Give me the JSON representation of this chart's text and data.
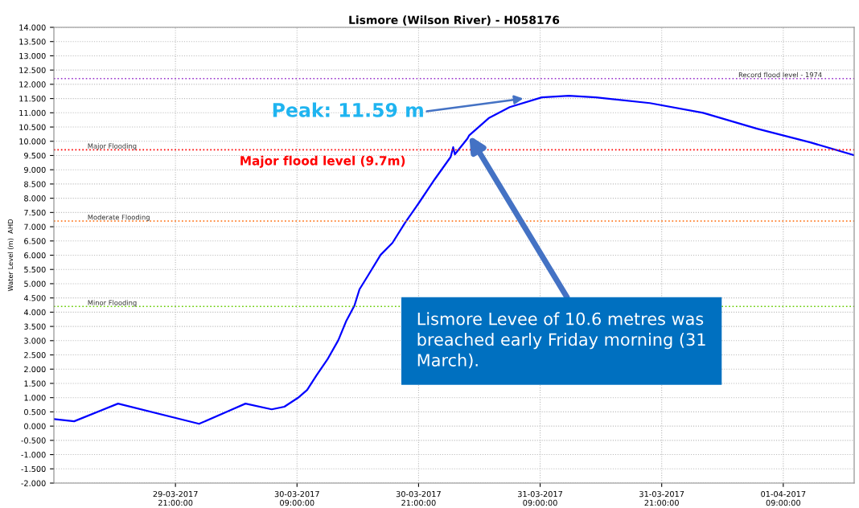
{
  "chart_data": {
    "type": "line",
    "title": "Lismore (Wilson River) - H058176",
    "ylabel": "Water Level (m)  AHD",
    "series": [
      {
        "color": "#0000ff",
        "x": [
          "2017-03-29T09:00",
          "2017-03-29T11:00",
          "2017-03-29T15:20",
          "2017-03-29T23:20",
          "2017-03-30T03:55",
          "2017-03-30T06:30",
          "2017-03-30T07:45",
          "2017-03-30T09:05",
          "2017-03-30T10:00",
          "2017-03-30T10:55",
          "2017-03-30T12:00",
          "2017-03-30T13:05",
          "2017-03-30T13:50",
          "2017-03-30T14:40",
          "2017-03-30T15:10",
          "2017-03-30T16:00",
          "2017-03-30T17:15",
          "2017-03-30T18:25",
          "2017-03-30T19:40",
          "2017-03-30T21:00",
          "2017-03-30T22:35",
          "2017-03-31T00:10",
          "2017-03-31T00:25",
          "2017-03-31T00:35",
          "2017-03-31T01:50",
          "2017-03-31T02:00",
          "2017-03-31T03:55",
          "2017-03-31T06:00",
          "2017-03-31T09:10",
          "2017-03-31T11:50",
          "2017-03-31T14:30",
          "2017-03-31T19:50",
          "2017-04-01T01:05",
          "2017-04-01T06:25",
          "2017-04-01T11:40",
          "2017-04-01T16:00"
        ],
        "values": [
          0.25,
          0.17,
          0.79,
          0.08,
          0.79,
          0.59,
          0.68,
          0.99,
          1.27,
          1.78,
          2.34,
          3.02,
          3.67,
          4.23,
          4.8,
          5.28,
          6.01,
          6.43,
          7.14,
          7.82,
          8.66,
          9.45,
          9.79,
          9.54,
          10.1,
          10.21,
          10.81,
          11.2,
          11.54,
          11.6,
          11.54,
          11.34,
          11.0,
          10.44,
          9.96,
          9.51
        ]
      }
    ],
    "xlim": [
      "2017-03-29T09:00",
      "2017-04-01T16:00"
    ],
    "xticks": [
      {
        "value": "2017-03-29T21:00",
        "label": "29-03-2017\n21:00:00"
      },
      {
        "value": "2017-03-30T09:00",
        "label": "30-03-2017\n09:00:00"
      },
      {
        "value": "2017-03-30T21:00",
        "label": "30-03-2017\n21:00:00"
      },
      {
        "value": "2017-03-31T09:00",
        "label": "31-03-2017\n09:00:00"
      },
      {
        "value": "2017-03-31T21:00",
        "label": "31-03-2017\n21:00:00"
      },
      {
        "value": "2017-04-01T09:00",
        "label": "01-04-2017\n09:00:00"
      }
    ],
    "ylim": [
      -2,
      14
    ],
    "yticks": [
      {
        "value": -2,
        "label": "-2.000"
      },
      {
        "value": -1.5,
        "label": "-1.500"
      },
      {
        "value": -1,
        "label": "-1.000"
      },
      {
        "value": -0.5,
        "label": "-0.500"
      },
      {
        "value": 0,
        "label": "0.000"
      },
      {
        "value": 0.5,
        "label": "0.500"
      },
      {
        "value": 1,
        "label": "1.000"
      },
      {
        "value": 1.5,
        "label": "1.500"
      },
      {
        "value": 2,
        "label": "2.000"
      },
      {
        "value": 2.5,
        "label": "2.500"
      },
      {
        "value": 3,
        "label": "3.000"
      },
      {
        "value": 3.5,
        "label": "3.500"
      },
      {
        "value": 4,
        "label": "4.000"
      },
      {
        "value": 4.5,
        "label": "4.500"
      },
      {
        "value": 5,
        "label": "5.000"
      },
      {
        "value": 5.5,
        "label": "5.500"
      },
      {
        "value": 6,
        "label": "6.000"
      },
      {
        "value": 6.5,
        "label": "6.500"
      },
      {
        "value": 7,
        "label": "7.000"
      },
      {
        "value": 7.5,
        "label": "7.500"
      },
      {
        "value": 8,
        "label": "8.000"
      },
      {
        "value": 8.5,
        "label": "8.500"
      },
      {
        "value": 9,
        "label": "9.000"
      },
      {
        "value": 9.5,
        "label": "9.500"
      },
      {
        "value": 10,
        "label": "10.000"
      },
      {
        "value": 10.5,
        "label": "10.500"
      },
      {
        "value": 11,
        "label": "11.000"
      },
      {
        "value": 11.5,
        "label": "11.500"
      },
      {
        "value": 12,
        "label": "12.000"
      },
      {
        "value": 12.5,
        "label": "12.500"
      },
      {
        "value": 13,
        "label": "13.000"
      },
      {
        "value": 13.5,
        "label": "13.500"
      },
      {
        "value": 14,
        "label": "14.000"
      }
    ],
    "grid": true,
    "legend": false,
    "marker": "none",
    "line_style": "solid",
    "ref_lines": [
      {
        "axis": "y",
        "value": 12.2,
        "label": "Record flood level - 1974",
        "color": "#9933cc",
        "line_style": "dotted"
      },
      {
        "axis": "y",
        "value": 9.7,
        "label": "Major Flooding",
        "color": "#ff0000",
        "line_style": "dotted"
      },
      {
        "axis": "y",
        "value": 7.2,
        "label": "Moderate Flooding",
        "color": "#ff6600",
        "line_style": "dotted"
      },
      {
        "axis": "y",
        "value": 4.2,
        "label": "Minor Flooding",
        "color": "#66cc00",
        "line_style": "dotted"
      }
    ],
    "annotations": [
      {
        "text": "Peak: 11.59 m",
        "x": "2017-03-31T07:20",
        "y": 11.5
      },
      "Major flood level (9.7m)",
      {
        "text": "Lismore Levee of 10.6 metres was\nbreached early Friday morning (31\nMarch).",
        "x": "2017-03-31T02:00",
        "y": 10.2
      }
    ]
  }
}
